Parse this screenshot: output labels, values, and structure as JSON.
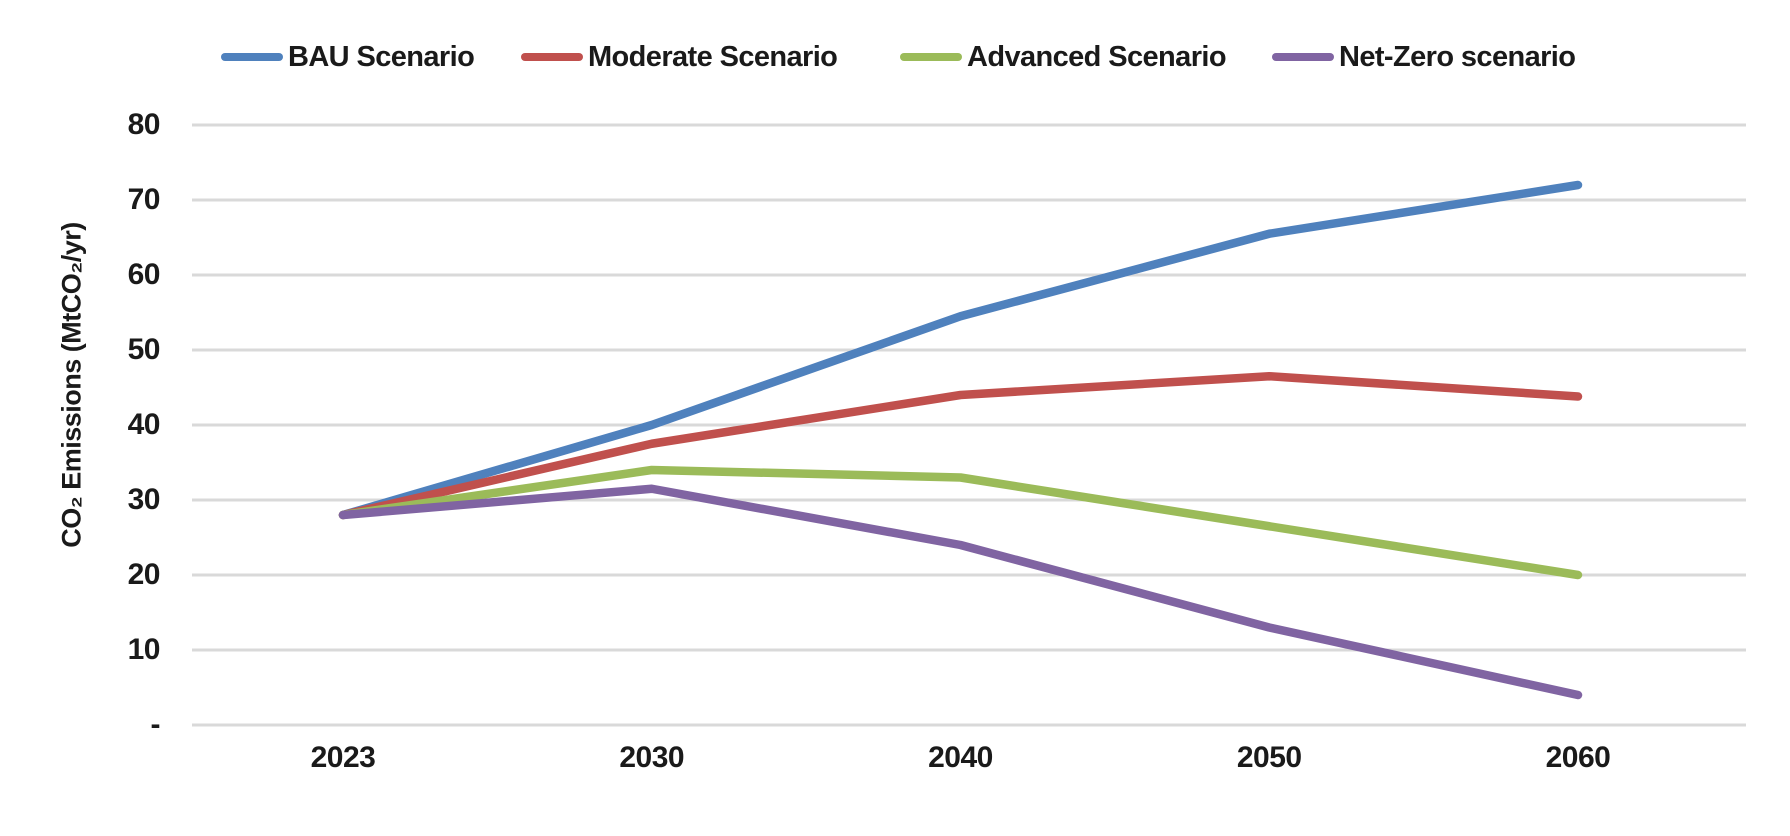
{
  "chart_data": {
    "type": "line",
    "ylabel": "CO₂ Emissions (MtCO₂/yr)",
    "xlabel": "",
    "categories": [
      "2023",
      "2030",
      "2040",
      "2050",
      "2060"
    ],
    "series": [
      {
        "name": "BAU Scenario",
        "color": "#4F81BD",
        "values": [
          28,
          40,
          54.5,
          65.5,
          72
        ]
      },
      {
        "name": "Moderate Scenario",
        "color": "#C0504D",
        "values": [
          28,
          37.5,
          44,
          46.5,
          43.8
        ]
      },
      {
        "name": "Advanced Scenario",
        "color": "#9BBB59",
        "values": [
          28,
          34,
          33,
          26.5,
          20
        ]
      },
      {
        "name": "Net-Zero scenario",
        "color": "#8064A2",
        "values": [
          28,
          31.5,
          24,
          13,
          4
        ]
      }
    ],
    "y_ticks": [
      {
        "label": "80",
        "value": 80
      },
      {
        "label": "70",
        "value": 70
      },
      {
        "label": "60",
        "value": 60
      },
      {
        "label": "50",
        "value": 50
      },
      {
        "label": "40",
        "value": 40
      },
      {
        "label": "30",
        "value": 30
      },
      {
        "label": "20",
        "value": 20
      },
      {
        "label": "10",
        "value": 10
      },
      {
        "label": "-",
        "value": 0
      }
    ],
    "ylim": [
      0,
      80
    ],
    "grid": "horizontal",
    "legend_position": "top",
    "gridline_color": "#D9D9D9",
    "text_color": "#1a1a1a",
    "background_color": "#ffffff"
  }
}
